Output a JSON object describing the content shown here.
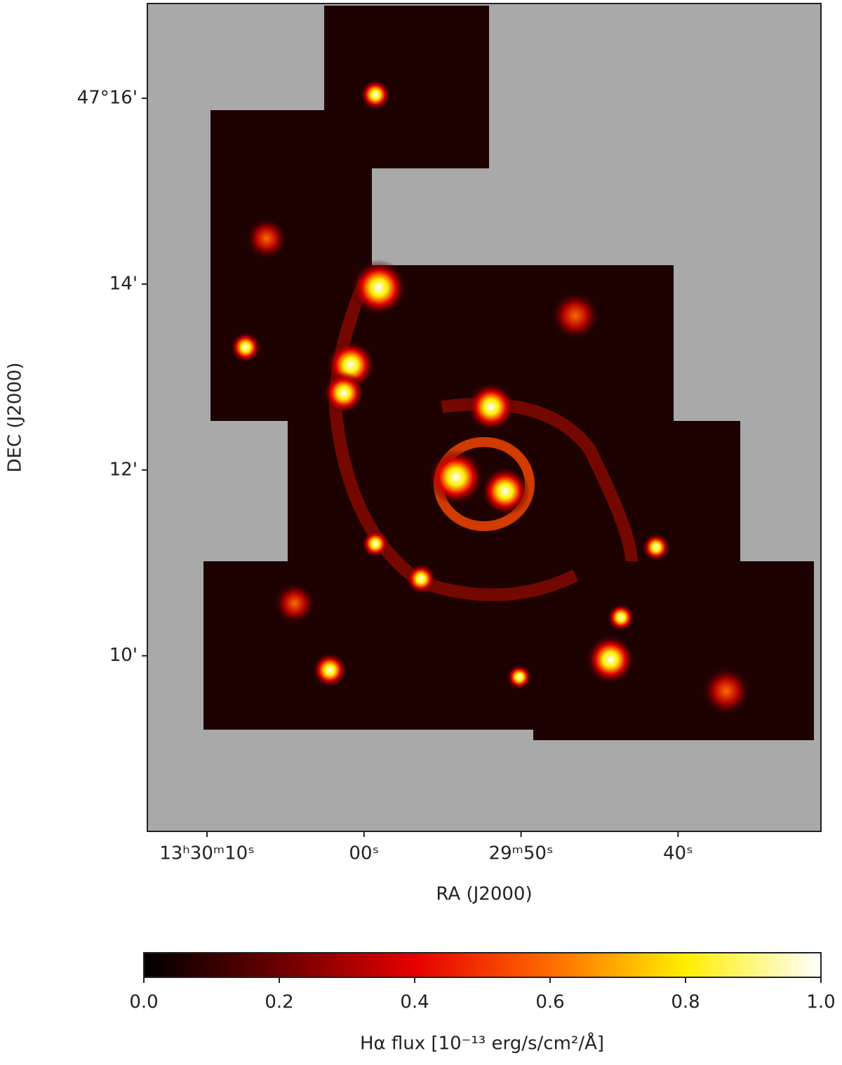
{
  "chart_data": {
    "type": "heatmap",
    "xlabel": "RA (J2000)",
    "ylabel": "DEC (J2000)",
    "xlim": [
      73.8,
      30.9
    ],
    "xticks": [
      {
        "value": 70,
        "label": "13ʰ30ᵐ10ˢ"
      },
      {
        "value": 60,
        "label": "00ˢ"
      },
      {
        "value": 50,
        "label": "29ᵐ50ˢ"
      },
      {
        "value": 40,
        "label": "40ˢ"
      }
    ],
    "ylim": [
      8.11,
      17.02
    ],
    "yticks": [
      {
        "value": 16,
        "label": "47°16'"
      },
      {
        "value": 14,
        "label": "14'"
      },
      {
        "value": 12,
        "label": "12'"
      },
      {
        "value": 10,
        "label": "10'"
      }
    ],
    "colorbar": {
      "label": "Hα flux [10⁻¹³ erg/s/cm²/Å]",
      "clim": [
        0,
        1
      ],
      "ticks": [
        {
          "value": 0,
          "label": "0.0"
        },
        0.2,
        0.4,
        0.6,
        0.8,
        {
          "value": 1,
          "label": "1.0"
        }
      ],
      "colormap": [
        "#000000",
        "#6b0000",
        "#e60000",
        "#ff6a00",
        "#ffee00",
        "#ffffff"
      ]
    }
  }
}
